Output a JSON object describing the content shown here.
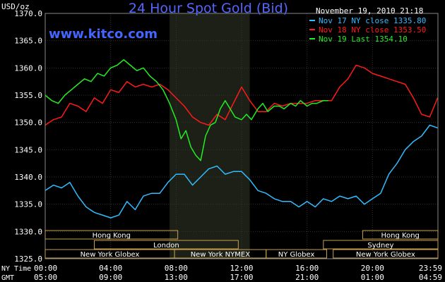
{
  "chart_data": {
    "type": "line",
    "title": "24 Hour Spot Gold (Bid)",
    "watermark": "www.kitco.com",
    "timestamp": "November 19, 2010 21:18",
    "ylabel": "USD/oz",
    "ylim": [
      1325,
      1370
    ],
    "yticks": [
      "1370.0",
      "1365.0",
      "1360.0",
      "1355.0",
      "1350.0",
      "1345.0",
      "1340.0",
      "1335.0",
      "1330.0",
      "1325.0"
    ],
    "xlim": [
      0,
      24
    ],
    "x_row_labels": [
      "NY Time",
      "GMT"
    ],
    "xticks_ny": [
      "00:00",
      "04:00",
      "08:00",
      "12:00",
      "16:00",
      "20:00",
      "23:59"
    ],
    "xticks_gmt": [
      "05:00",
      "09:00",
      "13:00",
      "17:00",
      "21:00",
      "01:00",
      "04:59"
    ],
    "shaded_region_hours": [
      7.6,
      12.5
    ],
    "legend": [
      {
        "text": "Nov 17 NY close 1335.80",
        "color": "#33bbff"
      },
      {
        "text": "Nov 18 NY close 1353.50",
        "color": "#ff1a1a"
      },
      {
        "text": "Nov 19 Last 1354.10",
        "color": "#22ee22"
      }
    ],
    "series": [
      {
        "name": "Nov 17",
        "color": "#33bbff",
        "x": [
          0,
          0.5,
          1,
          1.5,
          2,
          2.5,
          3,
          3.5,
          4,
          4.5,
          5,
          5.5,
          6,
          6.5,
          7,
          7.5,
          8,
          8.5,
          9,
          9.5,
          10,
          10.5,
          11,
          11.5,
          12,
          12.5,
          13,
          13.5,
          14,
          14.5,
          15,
          15.5,
          16,
          16.5,
          17,
          17.5,
          18,
          18.5,
          19,
          19.5,
          20,
          20.5,
          21,
          21.5,
          22,
          22.5,
          23,
          23.5,
          23.98
        ],
        "y": [
          1337.5,
          1338.5,
          1338.0,
          1339.0,
          1336.5,
          1334.5,
          1333.5,
          1333.0,
          1332.5,
          1333.0,
          1335.5,
          1334.0,
          1336.5,
          1337.0,
          1337.0,
          1339.0,
          1340.5,
          1340.5,
          1338.5,
          1340.0,
          1341.5,
          1342.0,
          1340.5,
          1341.0,
          1341.0,
          1339.5,
          1337.5,
          1337.0,
          1336.0,
          1335.5,
          1335.5,
          1334.5,
          1335.5,
          1334.5,
          1336.0,
          1335.5,
          1336.5,
          1336.0,
          1336.5,
          1335.0,
          1336.0,
          1337.0,
          1340.5,
          1342.5,
          1345.0,
          1346.5,
          1347.5,
          1349.5,
          1349.0
        ]
      },
      {
        "name": "Nov 18",
        "color": "#ff1a1a",
        "x": [
          0,
          0.5,
          1,
          1.5,
          2,
          2.5,
          3,
          3.5,
          4,
          4.5,
          5,
          5.5,
          6,
          6.5,
          7,
          7.5,
          8,
          8.5,
          9,
          9.5,
          10,
          10.5,
          11,
          11.5,
          12,
          12.5,
          13,
          13.5,
          14,
          14.5,
          15,
          15.5,
          16,
          16.5,
          17,
          17.5,
          18,
          18.5,
          19,
          19.5,
          20,
          20.5,
          21,
          21.5,
          22,
          22.5,
          23,
          23.5,
          23.98
        ],
        "y": [
          1349.5,
          1350.5,
          1351.0,
          1353.5,
          1353.0,
          1352.0,
          1354.5,
          1353.5,
          1356.0,
          1355.5,
          1357.5,
          1356.5,
          1357.0,
          1356.5,
          1357.0,
          1356.0,
          1354.5,
          1353.0,
          1351.0,
          1350.0,
          1349.5,
          1351.5,
          1350.5,
          1353.5,
          1356.5,
          1354.0,
          1352.0,
          1352.0,
          1353.5,
          1353.0,
          1353.5,
          1353.5,
          1353.5,
          1354.0,
          1354.0,
          1354.0,
          1356.5,
          1358.0,
          1360.5,
          1360.0,
          1359.0,
          1358.5,
          1358.0,
          1357.5,
          1357.0,
          1354.5,
          1351.5,
          1351.0,
          1354.5
        ]
      },
      {
        "name": "Nov 19",
        "color": "#22ee22",
        "x": [
          0,
          0.4,
          0.8,
          1.2,
          1.6,
          2,
          2.4,
          2.8,
          3.2,
          3.6,
          4,
          4.4,
          4.8,
          5.2,
          5.6,
          6,
          6.4,
          6.8,
          7.2,
          7.6,
          8,
          8.3,
          8.6,
          8.9,
          9.2,
          9.5,
          9.8,
          10.1,
          10.4,
          10.7,
          11,
          11.3,
          11.6,
          12,
          12.3,
          12.6,
          13,
          13.3,
          13.6,
          14,
          14.3,
          14.6,
          15,
          15.3,
          15.6,
          16,
          16.3,
          16.6,
          17,
          17.3
        ],
        "y": [
          1355.0,
          1354.0,
          1353.5,
          1355.0,
          1356.0,
          1357.0,
          1358.0,
          1357.5,
          1359.0,
          1358.5,
          1360.0,
          1360.5,
          1361.5,
          1360.5,
          1359.5,
          1360.0,
          1358.5,
          1357.5,
          1356.0,
          1353.5,
          1350.5,
          1347.0,
          1348.5,
          1345.5,
          1344.0,
          1343.0,
          1347.5,
          1349.5,
          1350.0,
          1352.5,
          1354.0,
          1352.5,
          1351.0,
          1350.5,
          1351.5,
          1350.5,
          1352.5,
          1353.5,
          1352.0,
          1353.0,
          1353.0,
          1352.5,
          1353.5,
          1353.0,
          1354.0,
          1353.0,
          1353.5,
          1353.5,
          1354.0,
          1354.0
        ]
      }
    ]
  },
  "sessions": [
    {
      "label": "Hong Kong",
      "start": 0,
      "end": 8.1,
      "row": 0
    },
    {
      "label": "Hong Kong",
      "start": 19.4,
      "end": 24,
      "row": 0
    },
    {
      "label": "London",
      "start": 3.0,
      "end": 11.8,
      "row": 1
    },
    {
      "label": "Sydney",
      "start": 17.0,
      "end": 24,
      "row": 1
    },
    {
      "label": "New York Globex",
      "start": 0,
      "end": 7.9,
      "row": 2
    },
    {
      "label": "New York NYMEX",
      "start": 7.9,
      "end": 13.5,
      "row": 2
    },
    {
      "label": "NY Globex",
      "start": 13.5,
      "end": 17.2,
      "row": 2
    },
    {
      "label": "New York Globex",
      "start": 17.6,
      "end": 24,
      "row": 2
    }
  ]
}
